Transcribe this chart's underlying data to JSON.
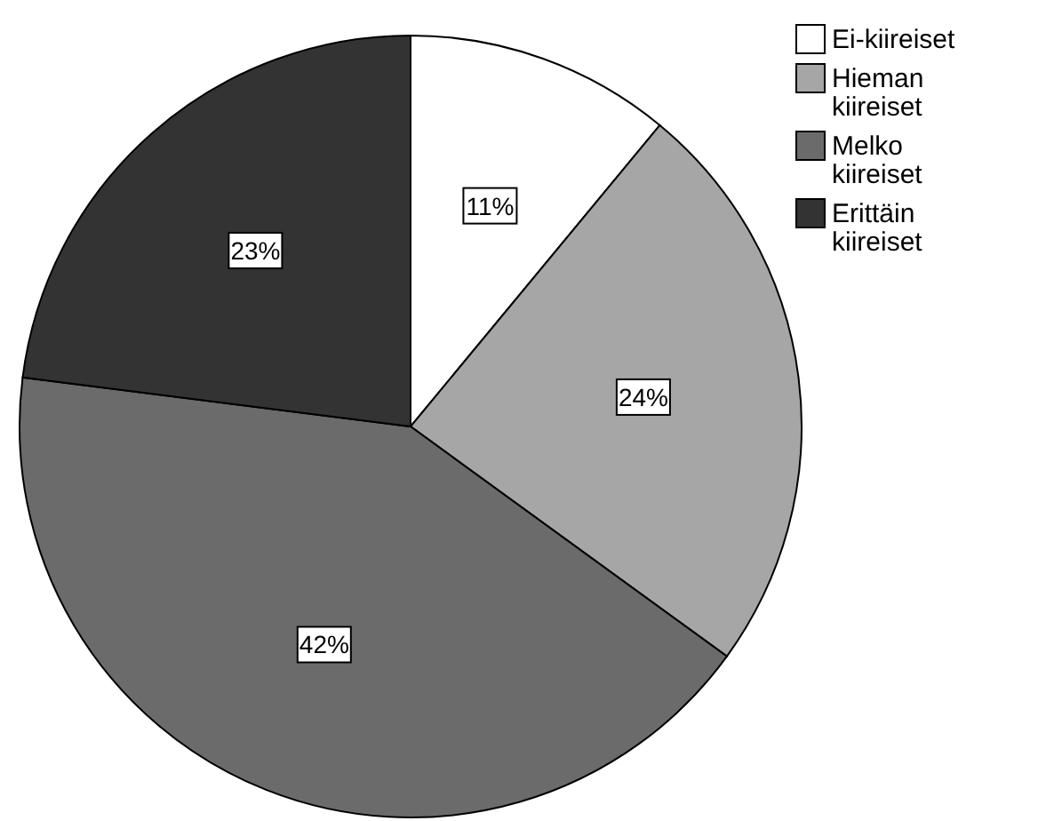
{
  "chart_data": {
    "type": "pie",
    "categories": [
      "Ei-kiireiset",
      "Hieman kiireiset",
      "Melko kiireiset",
      "Erittäin kiireiset"
    ],
    "values": [
      11,
      24,
      42,
      23
    ],
    "value_labels": [
      "11%",
      "24%",
      "42%",
      "23%"
    ],
    "colors": [
      "#ffffff",
      "#a6a6a6",
      "#6b6b6b",
      "#333333"
    ],
    "legend": "top right"
  }
}
